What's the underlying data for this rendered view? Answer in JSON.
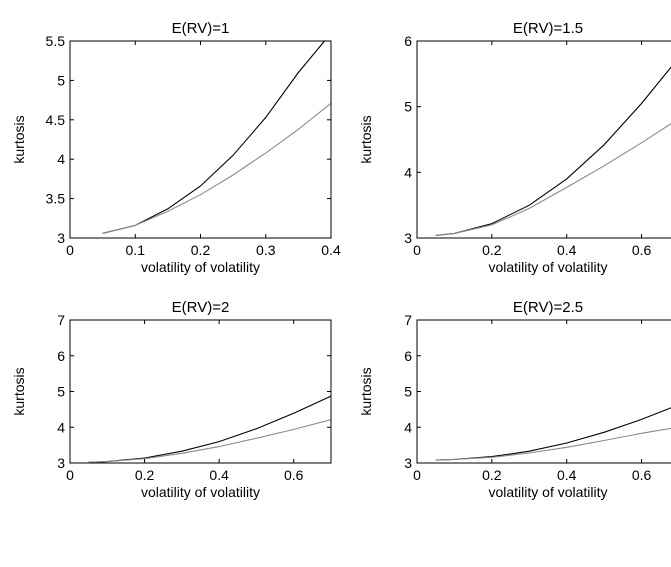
{
  "chart_data": [
    {
      "type": "line",
      "title": "E(RV)=1",
      "xlabel": "volatility of volatility",
      "ylabel": "kurtosis",
      "xlim": [
        0,
        0.4
      ],
      "ylim": [
        3,
        5.5
      ],
      "xticks": [
        0,
        0.1,
        0.2,
        0.3,
        0.4
      ],
      "xtick_labels": [
        "0",
        "0.1",
        "0.2",
        "0.3",
        "0.4"
      ],
      "yticks": [
        3,
        3.5,
        4,
        4.5,
        5,
        5.5
      ],
      "ytick_labels": [
        "3",
        "3.5",
        "4",
        "4.5",
        "5",
        "5.5"
      ],
      "grid": false,
      "series": [
        {
          "color": "#000000",
          "x": [
            0.05,
            0.1,
            0.15,
            0.2,
            0.25,
            0.3,
            0.35,
            0.39
          ],
          "y": [
            3.06,
            3.16,
            3.37,
            3.66,
            4.05,
            4.53,
            5.1,
            5.5
          ]
        },
        {
          "color": "#8a8a8a",
          "x": [
            0.05,
            0.1,
            0.15,
            0.2,
            0.25,
            0.3,
            0.35,
            0.4
          ],
          "y": [
            3.06,
            3.16,
            3.34,
            3.55,
            3.8,
            4.08,
            4.38,
            4.71
          ]
        }
      ]
    },
    {
      "type": "line",
      "title": "E(RV)=1.5",
      "xlabel": "volatility of volatility",
      "ylabel": "kurtosis",
      "xlim": [
        0,
        0.7
      ],
      "ylim": [
        3,
        6
      ],
      "xticks": [
        0,
        0.2,
        0.4,
        0.6
      ],
      "xtick_labels": [
        "0",
        "0.2",
        "0.4",
        "0.6"
      ],
      "yticks": [
        3,
        4,
        5,
        6
      ],
      "ytick_labels": [
        "3",
        "4",
        "5",
        "6"
      ],
      "grid": false,
      "series": [
        {
          "color": "#000000",
          "x": [
            0.05,
            0.1,
            0.2,
            0.3,
            0.4,
            0.5,
            0.6,
            0.7
          ],
          "y": [
            3.04,
            3.07,
            3.22,
            3.5,
            3.9,
            4.42,
            5.05,
            5.75
          ]
        },
        {
          "color": "#8a8a8a",
          "x": [
            0.05,
            0.1,
            0.2,
            0.3,
            0.4,
            0.5,
            0.6,
            0.7
          ],
          "y": [
            3.04,
            3.07,
            3.2,
            3.45,
            3.77,
            4.1,
            4.45,
            4.82
          ]
        }
      ]
    },
    {
      "type": "line",
      "title": "E(RV)=2",
      "xlabel": "volatility of volatility",
      "ylabel": "kurtosis",
      "xlim": [
        0,
        0.7
      ],
      "ylim": [
        3,
        7
      ],
      "xticks": [
        0,
        0.2,
        0.4,
        0.6
      ],
      "xtick_labels": [
        "0",
        "0.2",
        "0.4",
        "0.6"
      ],
      "yticks": [
        3,
        4,
        5,
        6,
        7
      ],
      "ytick_labels": [
        "3",
        "4",
        "5",
        "6",
        "7"
      ],
      "grid": false,
      "series": [
        {
          "color": "#000000",
          "x": [
            0.05,
            0.1,
            0.2,
            0.3,
            0.4,
            0.5,
            0.6,
            0.7
          ],
          "y": [
            3.02,
            3.04,
            3.14,
            3.33,
            3.6,
            3.96,
            4.39,
            4.87
          ]
        },
        {
          "color": "#8a8a8a",
          "x": [
            0.05,
            0.1,
            0.2,
            0.3,
            0.4,
            0.5,
            0.6,
            0.7
          ],
          "y": [
            3.02,
            3.04,
            3.12,
            3.27,
            3.46,
            3.69,
            3.94,
            4.21
          ]
        }
      ]
    },
    {
      "type": "line",
      "title": "E(RV)=2.5",
      "xlabel": "volatility of volatility",
      "ylabel": "kurtosis",
      "xlim": [
        0,
        0.7
      ],
      "ylim": [
        3,
        7
      ],
      "xticks": [
        0,
        0.2,
        0.4,
        0.6
      ],
      "xtick_labels": [
        "0",
        "0.2",
        "0.4",
        "0.6"
      ],
      "yticks": [
        3,
        4,
        5,
        6,
        7
      ],
      "ytick_labels": [
        "3",
        "4",
        "5",
        "6",
        "7"
      ],
      "grid": false,
      "series": [
        {
          "color": "#000000",
          "x": [
            0.05,
            0.1,
            0.2,
            0.3,
            0.4,
            0.5,
            0.6,
            0.7
          ],
          "y": [
            3.08,
            3.1,
            3.18,
            3.33,
            3.56,
            3.86,
            4.22,
            4.63
          ]
        },
        {
          "color": "#8a8a8a",
          "x": [
            0.05,
            0.1,
            0.2,
            0.3,
            0.4,
            0.5,
            0.6,
            0.7
          ],
          "y": [
            3.08,
            3.1,
            3.16,
            3.28,
            3.44,
            3.63,
            3.83,
            4.01
          ]
        }
      ]
    }
  ]
}
